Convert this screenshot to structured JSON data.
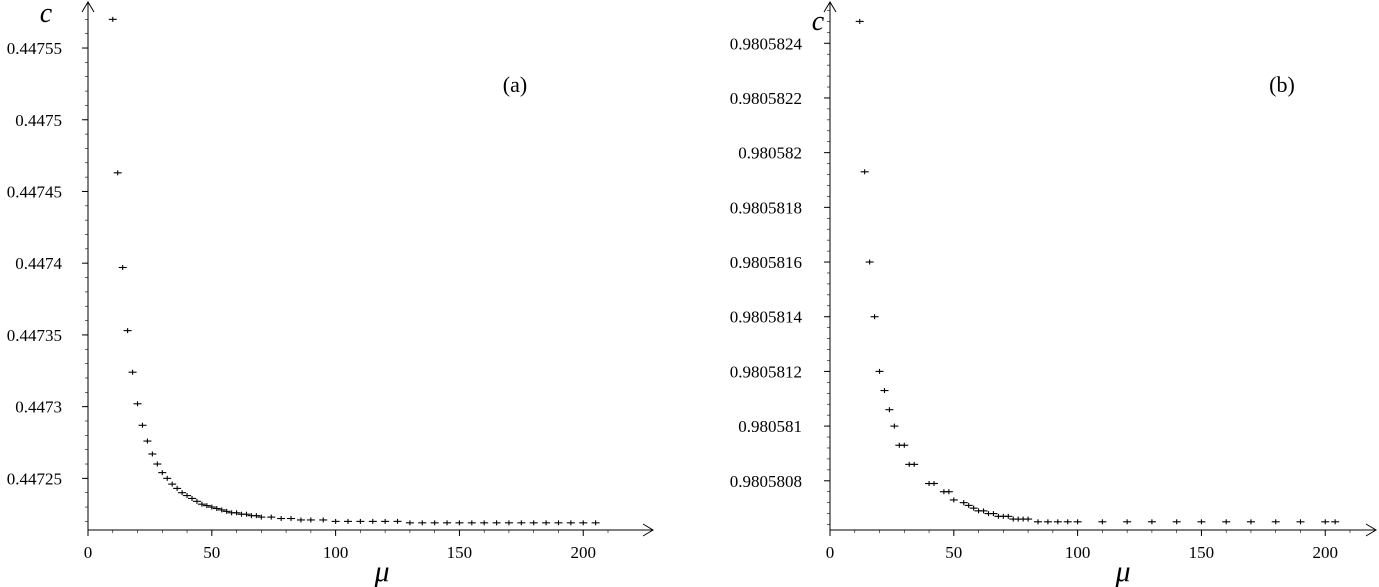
{
  "chart_data": [
    {
      "type": "scatter",
      "panel_label": "(a)",
      "xlabel": "μ",
      "ylabel": "c",
      "xlim": [
        0,
        220
      ],
      "ylim": [
        0.447214,
        0.44758
      ],
      "x_ticks": [
        0,
        50,
        100,
        150,
        200
      ],
      "x_tick_labels": [
        "0",
        "50",
        "100",
        "150",
        "200"
      ],
      "y_ticks": [
        0.44725,
        0.4473,
        0.44735,
        0.4474,
        0.44745,
        0.4475,
        0.44755
      ],
      "y_tick_labels": [
        "0.44725",
        "0.4473",
        "0.44735",
        "0.4474",
        "0.44745",
        "0.4475",
        "0.44755"
      ],
      "grid": false,
      "series": [
        {
          "x": [
            10,
            12,
            14,
            16,
            18,
            20,
            22,
            24,
            26,
            28,
            30,
            32,
            34,
            36,
            38,
            40,
            42,
            44,
            46,
            48,
            50,
            52,
            54,
            56,
            58,
            60,
            62,
            64,
            66,
            68,
            70,
            74,
            78,
            82,
            86,
            90,
            95,
            100,
            105,
            110,
            115,
            120,
            125,
            130,
            135,
            140,
            145,
            150,
            155,
            160,
            165,
            170,
            175,
            180,
            185,
            190,
            195,
            200,
            205
          ],
          "y": [
            0.44757,
            0.447463,
            0.447397,
            0.447353,
            0.447324,
            0.447302,
            0.447287,
            0.447276,
            0.447267,
            0.44726,
            0.447254,
            0.44725,
            0.447246,
            0.447243,
            0.44724,
            0.447238,
            0.447236,
            0.447234,
            0.447232,
            0.447231,
            0.44723,
            0.447229,
            0.447228,
            0.447227,
            0.447226,
            0.447226,
            0.447225,
            0.447225,
            0.447224,
            0.447224,
            0.447223,
            0.447223,
            0.447222,
            0.447222,
            0.447221,
            0.447221,
            0.447221,
            0.44722,
            0.44722,
            0.44722,
            0.44722,
            0.44722,
            0.44722,
            0.447219,
            0.447219,
            0.447219,
            0.447219,
            0.447219,
            0.447219,
            0.447219,
            0.447219,
            0.447219,
            0.447219,
            0.447219,
            0.447219,
            0.447219,
            0.447219,
            0.447219,
            0.447219
          ]
        }
      ]
    },
    {
      "type": "scatter",
      "panel_label": "(b)",
      "xlabel": "μ",
      "ylabel": "c",
      "xlim": [
        0,
        220
      ],
      "ylim": [
        0.98058062,
        0.98058254
      ],
      "x_ticks": [
        0,
        50,
        100,
        150,
        200
      ],
      "x_tick_labels": [
        "0",
        "50",
        "100",
        "150",
        "200"
      ],
      "y_ticks": [
        0.9805808,
        0.980581,
        0.9805812,
        0.9805814,
        0.9805816,
        0.9805818,
        0.980582,
        0.9805822,
        0.9805824
      ],
      "y_tick_labels": [
        "0.9805808",
        "0.980581",
        "0.9805812",
        "0.9805814",
        "0.9805816",
        "0.9805818",
        "0.980582",
        "0.9805822",
        "0.9805824"
      ],
      "grid": false,
      "series": [
        {
          "x": [
            12,
            14,
            16,
            18,
            20,
            22,
            24,
            26,
            28,
            30,
            32,
            34,
            40,
            42,
            46,
            48,
            50,
            54,
            56,
            58,
            60,
            62,
            64,
            66,
            68,
            70,
            72,
            74,
            76,
            78,
            80,
            84,
            88,
            92,
            96,
            100,
            110,
            120,
            130,
            140,
            150,
            160,
            170,
            180,
            190,
            200,
            204
          ],
          "y": [
            0.98058248,
            0.98058193,
            0.9805816,
            0.9805814,
            0.9805812,
            0.98058113,
            0.98058106,
            0.980581,
            0.98058093,
            0.98058093,
            0.98058086,
            0.98058086,
            0.98058079,
            0.98058079,
            0.98058076,
            0.98058076,
            0.98058073,
            0.98058072,
            0.98058071,
            0.9805807,
            0.98058069,
            0.98058069,
            0.98058068,
            0.98058068,
            0.98058067,
            0.98058067,
            0.98058067,
            0.98058066,
            0.98058066,
            0.98058066,
            0.98058066,
            0.98058065,
            0.98058065,
            0.98058065,
            0.98058065,
            0.98058065,
            0.98058065,
            0.98058065,
            0.98058065,
            0.98058065,
            0.98058065,
            0.98058065,
            0.98058065,
            0.98058065,
            0.98058065,
            0.98058065,
            0.98058065
          ]
        }
      ]
    }
  ]
}
